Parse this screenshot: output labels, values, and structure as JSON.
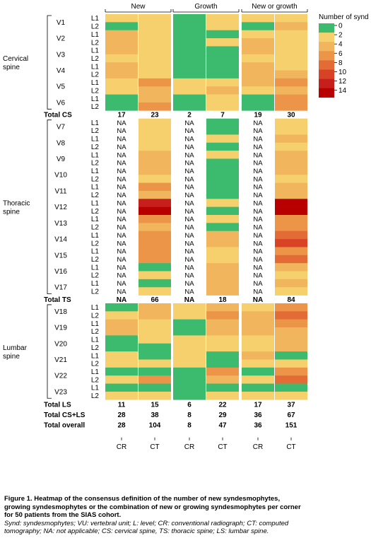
{
  "chart_data": {
    "type": "heatmap",
    "column_groups": [
      "New",
      "Growth",
      "New or growth"
    ],
    "column_labels": [
      "CR",
      "CT",
      "CR",
      "CT",
      "CR",
      "CT"
    ],
    "legend": {
      "title": "Number of synd",
      "ticks": [
        "0",
        "2",
        "4",
        "6",
        "8",
        "10",
        "12",
        "14"
      ],
      "colors": [
        "#3cba6e",
        "#f6d06c",
        "#f1b55d",
        "#ec9448",
        "#e36b35",
        "#d84326",
        "#c7201c",
        "#b80000"
      ],
      "placement": "top-right"
    },
    "na_label": "NA",
    "regions": [
      {
        "name": "Cervical spine",
        "name_lines": [
          "Cervical",
          "spine"
        ],
        "first_row": 0,
        "last_row": 11
      },
      {
        "name": "Thoracic spine",
        "name_lines": [
          "Thoracic",
          "spine"
        ],
        "first_row": 13,
        "last_row": 34
      },
      {
        "name": "Lumbar spine",
        "name_lines": [
          "Lumbar",
          "spine"
        ],
        "first_row": 36,
        "last_row": 47
      }
    ],
    "rows": [
      {
        "unit": "V1",
        "level": "L1",
        "values": [
          2,
          2,
          0,
          2,
          2,
          2
        ]
      },
      {
        "unit": "",
        "level": "L2",
        "values": [
          0,
          2,
          0,
          2,
          0,
          3
        ]
      },
      {
        "unit": "V2",
        "level": "L1",
        "values": [
          3,
          2,
          0,
          0,
          2,
          2
        ]
      },
      {
        "unit": "",
        "level": "L2",
        "values": [
          4,
          2,
          0,
          2,
          3,
          2
        ]
      },
      {
        "unit": "V3",
        "level": "L1",
        "values": [
          4,
          2,
          0,
          0,
          4,
          2
        ]
      },
      {
        "unit": "",
        "level": "L2",
        "values": [
          2,
          2,
          0,
          0,
          2,
          2
        ]
      },
      {
        "unit": "V4",
        "level": "L1",
        "values": [
          4,
          2,
          0,
          0,
          3,
          2
        ]
      },
      {
        "unit": "",
        "level": "L2",
        "values": [
          3,
          2,
          0,
          0,
          3,
          3
        ]
      },
      {
        "unit": "V5",
        "level": "L1",
        "values": [
          2,
          6,
          2,
          2,
          3,
          5
        ]
      },
      {
        "unit": "",
        "level": "L2",
        "values": [
          2,
          3,
          2,
          3,
          2,
          3
        ]
      },
      {
        "unit": "V6",
        "level": "L1",
        "values": [
          0,
          4,
          0,
          2,
          0,
          5
        ]
      },
      {
        "unit": "",
        "level": "L2",
        "values": [
          0,
          5,
          0,
          2,
          0,
          5
        ]
      },
      {
        "unit": "Total CS",
        "level": "",
        "total": true,
        "values": [
          "17",
          "23",
          "2",
          "7",
          "19",
          "30"
        ]
      },
      {
        "unit": "V7",
        "level": "L1",
        "values": [
          null,
          2,
          null,
          0,
          null,
          2
        ]
      },
      {
        "unit": "",
        "level": "L2",
        "values": [
          null,
          2,
          null,
          0,
          null,
          2
        ]
      },
      {
        "unit": "V8",
        "level": "L1",
        "values": [
          null,
          2,
          null,
          2,
          null,
          3
        ]
      },
      {
        "unit": "",
        "level": "L2",
        "values": [
          null,
          2,
          null,
          0,
          null,
          2
        ]
      },
      {
        "unit": "V9",
        "level": "L1",
        "values": [
          null,
          3,
          null,
          2,
          null,
          4
        ]
      },
      {
        "unit": "",
        "level": "L2",
        "values": [
          null,
          3,
          null,
          0,
          null,
          3
        ]
      },
      {
        "unit": "V10",
        "level": "L1",
        "values": [
          null,
          3,
          null,
          0,
          null,
          3
        ]
      },
      {
        "unit": "",
        "level": "L2",
        "values": [
          null,
          2,
          null,
          0,
          null,
          2
        ]
      },
      {
        "unit": "V11",
        "level": "L1",
        "values": [
          null,
          5,
          null,
          0,
          null,
          4
        ]
      },
      {
        "unit": "",
        "level": "L2",
        "values": [
          null,
          3,
          null,
          0,
          null,
          3
        ]
      },
      {
        "unit": "V12",
        "level": "L1",
        "values": [
          null,
          12,
          null,
          2,
          null,
          14
        ]
      },
      {
        "unit": "",
        "level": "L2",
        "values": [
          null,
          14,
          null,
          0,
          null,
          14
        ]
      },
      {
        "unit": "V13",
        "level": "L1",
        "values": [
          null,
          5,
          null,
          2,
          null,
          5
        ]
      },
      {
        "unit": "",
        "level": "L2",
        "values": [
          null,
          4,
          null,
          0,
          null,
          6
        ]
      },
      {
        "unit": "V14",
        "level": "L1",
        "values": [
          null,
          6,
          null,
          4,
          null,
          8
        ]
      },
      {
        "unit": "",
        "level": "L2",
        "values": [
          null,
          6,
          null,
          3,
          null,
          9
        ]
      },
      {
        "unit": "V15",
        "level": "L1",
        "values": [
          null,
          5,
          null,
          2,
          null,
          5
        ]
      },
      {
        "unit": "",
        "level": "L2",
        "values": [
          null,
          6,
          null,
          2,
          null,
          7
        ]
      },
      {
        "unit": "V16",
        "level": "L1",
        "values": [
          null,
          0,
          null,
          3,
          null,
          4
        ]
      },
      {
        "unit": "",
        "level": "L2",
        "values": [
          null,
          2,
          null,
          3,
          null,
          2
        ]
      },
      {
        "unit": "V17",
        "level": "L1",
        "values": [
          null,
          0,
          null,
          3,
          null,
          4
        ]
      },
      {
        "unit": "",
        "level": "L2",
        "values": [
          null,
          2,
          null,
          3,
          null,
          2
        ]
      },
      {
        "unit": "Total TS",
        "level": "",
        "total": true,
        "values": [
          "NA",
          "66",
          "NA",
          "18",
          "NA",
          "84"
        ]
      },
      {
        "unit": "V18",
        "level": "L1",
        "values": [
          0,
          3,
          2,
          4,
          2,
          6
        ]
      },
      {
        "unit": "",
        "level": "L2",
        "values": [
          2,
          4,
          2,
          5,
          3,
          8
        ]
      },
      {
        "unit": "V19",
        "level": "L1",
        "values": [
          3,
          2,
          0,
          3,
          3,
          5
        ]
      },
      {
        "unit": "",
        "level": "L2",
        "values": [
          4,
          2,
          0,
          3,
          4,
          4
        ]
      },
      {
        "unit": "V20",
        "level": "L1",
        "values": [
          0,
          2,
          2,
          2,
          2,
          3
        ]
      },
      {
        "unit": "",
        "level": "L2",
        "values": [
          0,
          0,
          2,
          2,
          2,
          3
        ]
      },
      {
        "unit": "V21",
        "level": "L1",
        "values": [
          2,
          0,
          2,
          0,
          3,
          0
        ]
      },
      {
        "unit": "",
        "level": "L2",
        "values": [
          2,
          2,
          2,
          0,
          2,
          2
        ]
      },
      {
        "unit": "V22",
        "level": "L1",
        "values": [
          0,
          0,
          0,
          6,
          0,
          6
        ]
      },
      {
        "unit": "",
        "level": "L2",
        "values": [
          2,
          5,
          0,
          3,
          2,
          8
        ]
      },
      {
        "unit": "V23",
        "level": "L1",
        "values": [
          0,
          0,
          0,
          0,
          0,
          0
        ]
      },
      {
        "unit": "",
        "level": "L2",
        "values": [
          2,
          2,
          0,
          2,
          2,
          2
        ]
      }
    ],
    "totals_bottom": [
      {
        "label": "Total LS",
        "values": [
          "11",
          "15",
          "6",
          "22",
          "17",
          "37"
        ]
      },
      {
        "label": "Total CS+LS",
        "values": [
          "28",
          "38",
          "8",
          "29",
          "36",
          "67"
        ]
      },
      {
        "label": "Total overall",
        "values": [
          "28",
          "104",
          "8",
          "47",
          "36",
          "151"
        ]
      }
    ]
  },
  "caption": {
    "line1": "Figure 1. Heatmap of the consensus definition of the number of new syndesmophytes,",
    "line2": "growing syndesmophytes or the combination of new or growing syndesmophytes per corner",
    "line3": "for 50 patients from the SIAS cohort.",
    "line4": "Synd: syndesmophytes; VU: vertebral unit; L: level; CR: conventional radiograph; CT: computed",
    "line5": "tomography; NA: not applicable; CS: cervical spine, TS: thoracic spine; LS: lumbar spine."
  }
}
